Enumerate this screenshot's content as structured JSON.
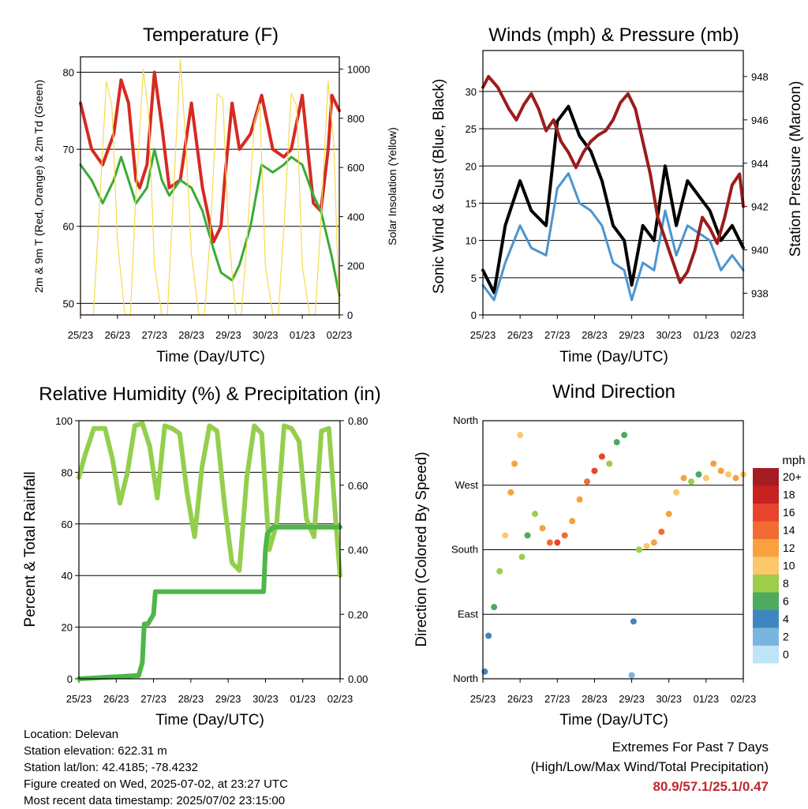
{
  "colors": {
    "temp2m": "#d62a22",
    "temp9m": "#f08a24",
    "dewpoint": "#3aaa35",
    "solar": "#f7d94c",
    "gust": "#000000",
    "wind": "#4d94cf",
    "pressure": "#9b1c1c",
    "rh": "#93cf4d",
    "precip": "#4eb747",
    "extremes_text": "#c0272d"
  },
  "x_ticks": [
    "25/23",
    "26/23",
    "27/23",
    "28/23",
    "29/23",
    "30/23",
    "01/23",
    "02/23"
  ],
  "footer": {
    "location": "Location: Delevan",
    "elevation": "Station elevation: 622.31 m",
    "latlon": "Station lat/lon: 42.4185; -78.4232",
    "created": "Figure created on Wed, 2025-07-02, at 23:27 UTC",
    "timestamp": "Most recent data timestamp: 2025/07/02 23:15:00"
  },
  "extremes": {
    "title": "Extremes For Past 7 Days",
    "subtitle": "(High/Low/Max Wind/Total Precipitation)",
    "values": "80.9/57.1/25.1/0.47"
  },
  "chart_data": [
    {
      "type": "line",
      "title": "Temperature (F)",
      "xlabel": "Time (Day/UTC)",
      "ylabel": "2m & 9m T (Red, Orange) & 2m Td (Green)",
      "ylabel_right": "Solar Insolation (Yellow)",
      "ylim": [
        48.5,
        82
      ],
      "yticks": [
        50,
        60,
        70,
        80
      ],
      "ylim_right": [
        0,
        1050
      ],
      "yticks_right": [
        0,
        200,
        400,
        600,
        800,
        1000
      ],
      "grid": true,
      "series": [
        {
          "key": "temp2m",
          "x": [
            0,
            0.3,
            0.6,
            0.9,
            1.1,
            1.3,
            1.5,
            1.6,
            1.8,
            2.0,
            2.2,
            2.4,
            2.7,
            3.0,
            3.3,
            3.6,
            3.8,
            3.9,
            4.1,
            4.3,
            4.6,
            4.9,
            5.2,
            5.5,
            5.7,
            6.0,
            6.3,
            6.5,
            6.7,
            6.8,
            6.9,
            7.0
          ],
          "values": [
            76,
            70,
            68,
            72,
            79,
            76,
            66,
            65,
            68,
            80,
            73,
            65,
            66,
            76,
            65,
            58,
            60,
            66,
            76,
            70,
            72,
            77,
            70,
            69,
            70,
            77,
            63,
            62,
            70,
            77,
            76,
            75
          ]
        },
        {
          "key": "dewpoint",
          "x": [
            0,
            0.3,
            0.6,
            0.9,
            1.1,
            1.3,
            1.5,
            1.8,
            2.0,
            2.2,
            2.4,
            2.7,
            3.0,
            3.3,
            3.6,
            3.8,
            4.1,
            4.3,
            4.6,
            4.9,
            5.2,
            5.5,
            5.7,
            6.0,
            6.3,
            6.5,
            6.8,
            7.0
          ],
          "values": [
            68,
            66,
            63,
            66,
            69,
            66,
            63,
            65,
            70,
            66,
            64,
            66,
            65,
            62,
            57,
            54,
            53,
            55,
            60,
            68,
            67,
            68,
            69,
            68,
            64,
            62,
            56,
            51
          ]
        },
        {
          "key": "solar",
          "x": [
            0,
            0.2,
            0.35,
            0.5,
            0.7,
            0.85,
            1.0,
            1.2,
            1.35,
            1.5,
            1.7,
            1.85,
            2.0,
            2.2,
            2.35,
            2.5,
            2.7,
            2.85,
            3.0,
            3.2,
            3.35,
            3.5,
            3.7,
            3.85,
            4.0,
            4.2,
            4.35,
            4.5,
            4.7,
            4.85,
            5.0,
            5.2,
            5.35,
            5.5,
            5.7,
            5.85,
            6.0,
            6.2,
            6.35,
            6.5,
            6.7,
            6.85,
            7.0
          ],
          "values": [
            0,
            0,
            0,
            400,
            950,
            850,
            300,
            0,
            0,
            500,
            1000,
            800,
            200,
            0,
            0,
            450,
            1040,
            700,
            250,
            0,
            0,
            300,
            900,
            880,
            350,
            0,
            0,
            300,
            780,
            860,
            200,
            0,
            0,
            350,
            900,
            850,
            200,
            0,
            0,
            380,
            950,
            700,
            0
          ]
        }
      ]
    },
    {
      "type": "line",
      "title": "Winds (mph) & Pressure (mb)",
      "xlabel": "Time (Day/UTC)",
      "ylabel": "Sonic Wind & Gust (Blue, Black)",
      "ylabel_right": "Station Pressure (Maroon)",
      "ylim": [
        0,
        35.5
      ],
      "yticks": [
        0,
        5,
        10,
        15,
        20,
        25,
        30
      ],
      "ylim_right": [
        937,
        949.2
      ],
      "yticks_right": [
        938,
        940,
        942,
        944,
        946,
        948
      ],
      "grid": true,
      "series": [
        {
          "key": "gust",
          "x": [
            0,
            0.3,
            0.6,
            1.0,
            1.3,
            1.7,
            2.0,
            2.3,
            2.6,
            2.9,
            3.2,
            3.5,
            3.8,
            4.0,
            4.3,
            4.6,
            4.9,
            5.2,
            5.5,
            5.8,
            6.1,
            6.4,
            6.7,
            7.0
          ],
          "values": [
            6,
            3,
            12,
            18,
            14,
            12,
            26,
            28,
            24,
            22,
            18,
            12,
            10,
            4,
            12,
            10,
            20,
            12,
            18,
            16,
            14,
            10,
            12,
            9
          ]
        },
        {
          "key": "wind",
          "x": [
            0,
            0.3,
            0.6,
            1.0,
            1.3,
            1.7,
            2.0,
            2.3,
            2.6,
            2.9,
            3.2,
            3.5,
            3.8,
            4.0,
            4.3,
            4.6,
            4.9,
            5.2,
            5.5,
            5.8,
            6.1,
            6.4,
            6.7,
            7.0
          ],
          "values": [
            4,
            2,
            7,
            12,
            9,
            8,
            17,
            19,
            15,
            14,
            12,
            7,
            6,
            2,
            7,
            6,
            14,
            8,
            12,
            11,
            10,
            6,
            8,
            6
          ]
        },
        {
          "key": "pressure",
          "x": [
            0,
            0.15,
            0.4,
            0.7,
            0.9,
            1.1,
            1.3,
            1.5,
            1.7,
            1.9,
            2.1,
            2.3,
            2.5,
            2.7,
            2.9,
            3.1,
            3.3,
            3.5,
            3.7,
            3.9,
            4.1,
            4.3,
            4.5,
            4.7,
            4.9,
            5.1,
            5.3,
            5.5,
            5.7,
            5.9,
            6.1,
            6.3,
            6.5,
            6.7,
            6.9,
            7.0
          ],
          "values": [
            947.5,
            948.0,
            947.5,
            946.5,
            946.0,
            946.7,
            947.2,
            946.5,
            945.5,
            946.0,
            945.0,
            944.5,
            943.8,
            944.5,
            945.0,
            945.3,
            945.5,
            946.0,
            946.8,
            947.2,
            946.5,
            945.0,
            943.5,
            941.5,
            940.5,
            939.5,
            938.5,
            939.0,
            940.0,
            941.5,
            941.0,
            940.3,
            941.5,
            943.0,
            943.5,
            942.0
          ]
        }
      ]
    },
    {
      "type": "line",
      "title": "Relative Humidity (%) & Precipitation (in)",
      "xlabel": "Time (Day/UTC)",
      "ylabel": "Percent & Total Rainfall",
      "ylim": [
        0,
        100
      ],
      "yticks": [
        0,
        20,
        40,
        60,
        80,
        100
      ],
      "ylim_right": [
        0,
        0.8
      ],
      "yticks_right": [
        "0.00",
        "0.20",
        "0.40",
        "0.60",
        "0.80"
      ],
      "grid": true,
      "series": [
        {
          "key": "rh",
          "x": [
            0,
            0.15,
            0.4,
            0.7,
            0.9,
            1.1,
            1.3,
            1.5,
            1.7,
            1.9,
            2.1,
            2.3,
            2.5,
            2.7,
            2.9,
            3.1,
            3.3,
            3.5,
            3.7,
            3.9,
            4.1,
            4.3,
            4.5,
            4.7,
            4.9,
            5.1,
            5.3,
            5.5,
            5.7,
            5.9,
            6.1,
            6.3,
            6.5,
            6.7,
            6.9,
            7.0
          ],
          "values": [
            78,
            86,
            97,
            97,
            85,
            68,
            80,
            98,
            99,
            90,
            70,
            98,
            97,
            95,
            72,
            55,
            82,
            98,
            96,
            68,
            45,
            42,
            78,
            98,
            95,
            50,
            60,
            98,
            97,
            92,
            62,
            55,
            96,
            97,
            58,
            40
          ]
        },
        {
          "key": "precip",
          "x": [
            0,
            1.6,
            1.7,
            1.75,
            1.85,
            2.0,
            2.05,
            4.95,
            5.0,
            5.05,
            5.2,
            7.0
          ],
          "values": [
            0,
            0.01,
            0.05,
            0.17,
            0.17,
            0.2,
            0.27,
            0.27,
            0.4,
            0.45,
            0.47,
            0.47
          ]
        }
      ]
    },
    {
      "type": "scatter",
      "title": "Wind Direction",
      "xlabel": "Time (Day/UTC)",
      "ylabel": "Direction (Colored By Speed)",
      "ylim": [
        0,
        360
      ],
      "yticks": [
        "North",
        "East",
        "South",
        "West",
        "North"
      ],
      "grid": true,
      "colorbar": {
        "unit": "mph",
        "labels": [
          "20+",
          "18",
          "16",
          "14",
          "12",
          "10",
          "8",
          "6",
          "4",
          "2",
          "0"
        ],
        "colors": [
          "#a51d22",
          "#c7221f",
          "#e8432c",
          "#f26b33",
          "#f9a03f",
          "#fcc76a",
          "#9ccd4b",
          "#4daa5f",
          "#3f86c0",
          "#7ab5e0",
          "#bde4f7"
        ]
      },
      "points": [
        [
          0.05,
          10
        ],
        [
          0.15,
          60
        ],
        [
          0.3,
          100
        ],
        [
          0.45,
          150
        ],
        [
          0.6,
          200
        ],
        [
          0.75,
          260
        ],
        [
          0.85,
          300
        ],
        [
          1.0,
          340
        ],
        [
          1.05,
          170
        ],
        [
          1.2,
          200
        ],
        [
          1.4,
          230
        ],
        [
          1.6,
          210
        ],
        [
          1.8,
          190
        ],
        [
          2.0,
          190
        ],
        [
          2.2,
          200
        ],
        [
          2.4,
          220
        ],
        [
          2.6,
          250
        ],
        [
          2.8,
          275
        ],
        [
          3.0,
          290
        ],
        [
          3.2,
          310
        ],
        [
          3.4,
          300
        ],
        [
          3.6,
          330
        ],
        [
          3.8,
          340
        ],
        [
          4.0,
          5
        ],
        [
          4.05,
          80
        ],
        [
          4.2,
          180
        ],
        [
          4.4,
          185
        ],
        [
          4.6,
          190
        ],
        [
          4.8,
          205
        ],
        [
          5.0,
          230
        ],
        [
          5.2,
          260
        ],
        [
          5.4,
          280
        ],
        [
          5.6,
          275
        ],
        [
          5.8,
          285
        ],
        [
          6.0,
          280
        ],
        [
          6.2,
          300
        ],
        [
          6.4,
          290
        ],
        [
          6.6,
          285
        ],
        [
          6.8,
          280
        ],
        [
          7.0,
          285
        ]
      ],
      "speeds": [
        3,
        4,
        6,
        8,
        10,
        12,
        12,
        10,
        8,
        6,
        8,
        12,
        14,
        16,
        14,
        12,
        12,
        14,
        16,
        15,
        8,
        6,
        6,
        2,
        4,
        8,
        10,
        12,
        14,
        12,
        10,
        12,
        8,
        6,
        10,
        12,
        12,
        10,
        12,
        10
      ]
    }
  ]
}
